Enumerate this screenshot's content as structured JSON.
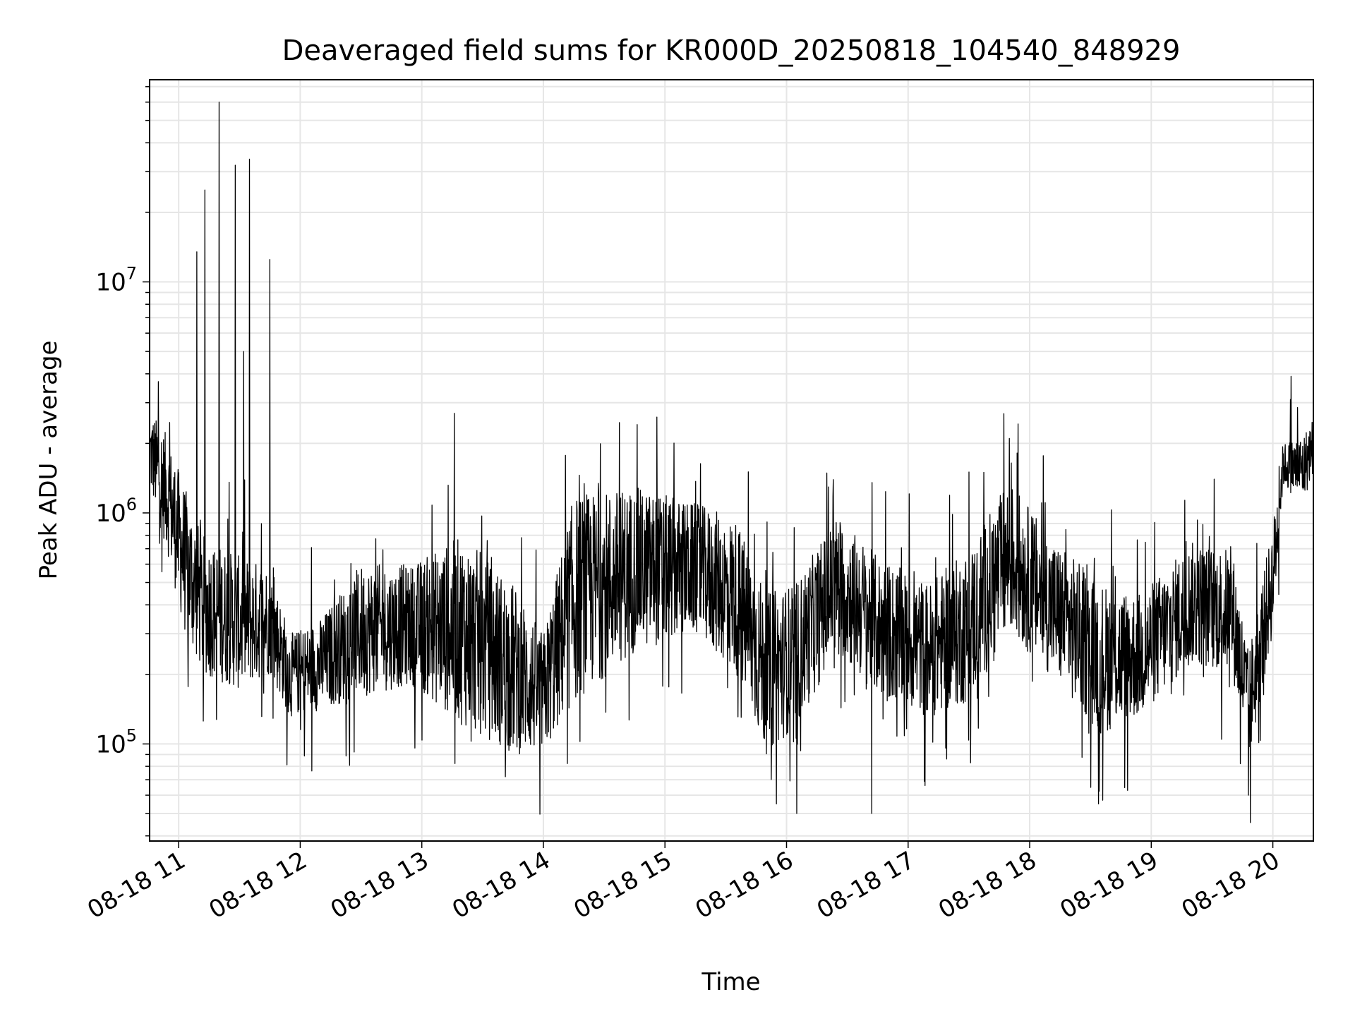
{
  "chart_data": {
    "type": "line",
    "title": "Deaveraged field sums for KR000D_20250818_104540_848929",
    "xlabel": "Time",
    "ylabel": "Peak ADU - average",
    "yscale": "log",
    "ylim": [
      38000,
      75000000
    ],
    "xlim": [
      "2025-08-18 10:45:40",
      "2025-08-18 20:20:00"
    ],
    "grid": true,
    "line_color": "#000000",
    "grid_color": "#e6e6e6",
    "x_ticks": [
      {
        "t": "2025-08-18 11:00",
        "label": "08-18 11"
      },
      {
        "t": "2025-08-18 12:00",
        "label": "08-18 12"
      },
      {
        "t": "2025-08-18 13:00",
        "label": "08-18 13"
      },
      {
        "t": "2025-08-18 14:00",
        "label": "08-18 14"
      },
      {
        "t": "2025-08-18 15:00",
        "label": "08-18 15"
      },
      {
        "t": "2025-08-18 16:00",
        "label": "08-18 16"
      },
      {
        "t": "2025-08-18 17:00",
        "label": "08-18 17"
      },
      {
        "t": "2025-08-18 18:00",
        "label": "08-18 18"
      },
      {
        "t": "2025-08-18 19:00",
        "label": "08-18 19"
      },
      {
        "t": "2025-08-18 20:00",
        "label": "08-18 20"
      }
    ],
    "y_ticks": [
      {
        "value": 100000,
        "base": "10",
        "exp": "5"
      },
      {
        "value": 1000000,
        "base": "10",
        "exp": "6"
      },
      {
        "value": 10000000,
        "base": "10",
        "exp": "7"
      }
    ],
    "series": [
      {
        "band": [
          {
            "t": "2025-08-18 10:46",
            "low": 1200000,
            "high": 2800000
          },
          {
            "t": "2025-08-18 10:54",
            "low": 700000,
            "high": 2200000
          },
          {
            "t": "2025-08-18 11:03",
            "low": 300000,
            "high": 1300000
          },
          {
            "t": "2025-08-18 11:12",
            "low": 200000,
            "high": 800000
          },
          {
            "t": "2025-08-18 11:30",
            "low": 170000,
            "high": 650000
          },
          {
            "t": "2025-08-18 11:45",
            "low": 200000,
            "high": 600000
          },
          {
            "t": "2025-08-18 11:55",
            "low": 130000,
            "high": 300000
          },
          {
            "t": "2025-08-18 12:10",
            "low": 140000,
            "high": 350000
          },
          {
            "t": "2025-08-18 12:30",
            "low": 160000,
            "high": 600000
          },
          {
            "t": "2025-08-18 12:55",
            "low": 180000,
            "high": 600000
          },
          {
            "t": "2025-08-18 13:20",
            "low": 120000,
            "high": 800000
          },
          {
            "t": "2025-08-18 13:45",
            "low": 90000,
            "high": 500000
          },
          {
            "t": "2025-08-18 14:00",
            "low": 90000,
            "high": 300000
          },
          {
            "t": "2025-08-18 14:15",
            "low": 150000,
            "high": 1200000
          },
          {
            "t": "2025-08-18 14:45",
            "low": 250000,
            "high": 1300000
          },
          {
            "t": "2025-08-18 15:15",
            "low": 300000,
            "high": 1100000
          },
          {
            "t": "2025-08-18 15:35",
            "low": 200000,
            "high": 950000
          },
          {
            "t": "2025-08-18 15:50",
            "low": 90000,
            "high": 450000
          },
          {
            "t": "2025-08-18 16:05",
            "low": 120000,
            "high": 500000
          },
          {
            "t": "2025-08-18 16:25",
            "low": 250000,
            "high": 1000000
          },
          {
            "t": "2025-08-18 16:45",
            "low": 160000,
            "high": 650000
          },
          {
            "t": "2025-08-18 17:10",
            "low": 130000,
            "high": 500000
          },
          {
            "t": "2025-08-18 17:30",
            "low": 150000,
            "high": 700000
          },
          {
            "t": "2025-08-18 17:50",
            "low": 300000,
            "high": 1400000
          },
          {
            "t": "2025-08-18 18:10",
            "low": 200000,
            "high": 800000
          },
          {
            "t": "2025-08-18 18:35",
            "low": 110000,
            "high": 500000
          },
          {
            "t": "2025-08-18 18:55",
            "low": 130000,
            "high": 450000
          },
          {
            "t": "2025-08-18 19:20",
            "low": 220000,
            "high": 750000
          },
          {
            "t": "2025-08-18 19:40",
            "low": 200000,
            "high": 700000
          },
          {
            "t": "2025-08-18 19:48",
            "low": 80000,
            "high": 250000
          },
          {
            "t": "2025-08-18 20:00",
            "low": 300000,
            "high": 900000
          },
          {
            "t": "2025-08-18 20:05",
            "low": 1300000,
            "high": 2000000
          },
          {
            "t": "2025-08-18 20:15",
            "low": 1100000,
            "high": 2200000
          },
          {
            "t": "2025-08-18 20:20",
            "low": 1500000,
            "high": 2600000
          }
        ],
        "spikes": [
          {
            "t": "2025-08-18 10:50",
            "value": 3700000
          },
          {
            "t": "2025-08-18 11:09",
            "value": 13500000
          },
          {
            "t": "2025-08-18 11:13",
            "value": 25000000
          },
          {
            "t": "2025-08-18 11:20",
            "value": 60000000
          },
          {
            "t": "2025-08-18 11:28",
            "value": 32000000
          },
          {
            "t": "2025-08-18 11:32",
            "value": 5000000
          },
          {
            "t": "2025-08-18 11:35",
            "value": 34000000
          },
          {
            "t": "2025-08-18 11:45",
            "value": 12500000
          },
          {
            "t": "2025-08-18 13:16",
            "value": 2700000
          },
          {
            "t": "2025-08-18 14:56",
            "value": 2600000
          },
          {
            "t": "2025-08-18 17:50",
            "value": 2100000
          },
          {
            "t": "2025-08-18 20:09",
            "value": 3900000
          },
          {
            "t": "2025-08-18 16:42",
            "value": 50000
          },
          {
            "t": "2025-08-18 16:05",
            "value": 50000
          },
          {
            "t": "2025-08-18 18:34",
            "value": 55000
          },
          {
            "t": "2025-08-18 19:48",
            "value": 60000
          },
          {
            "t": "2025-08-18 15:55",
            "value": 55000
          }
        ]
      }
    ]
  }
}
